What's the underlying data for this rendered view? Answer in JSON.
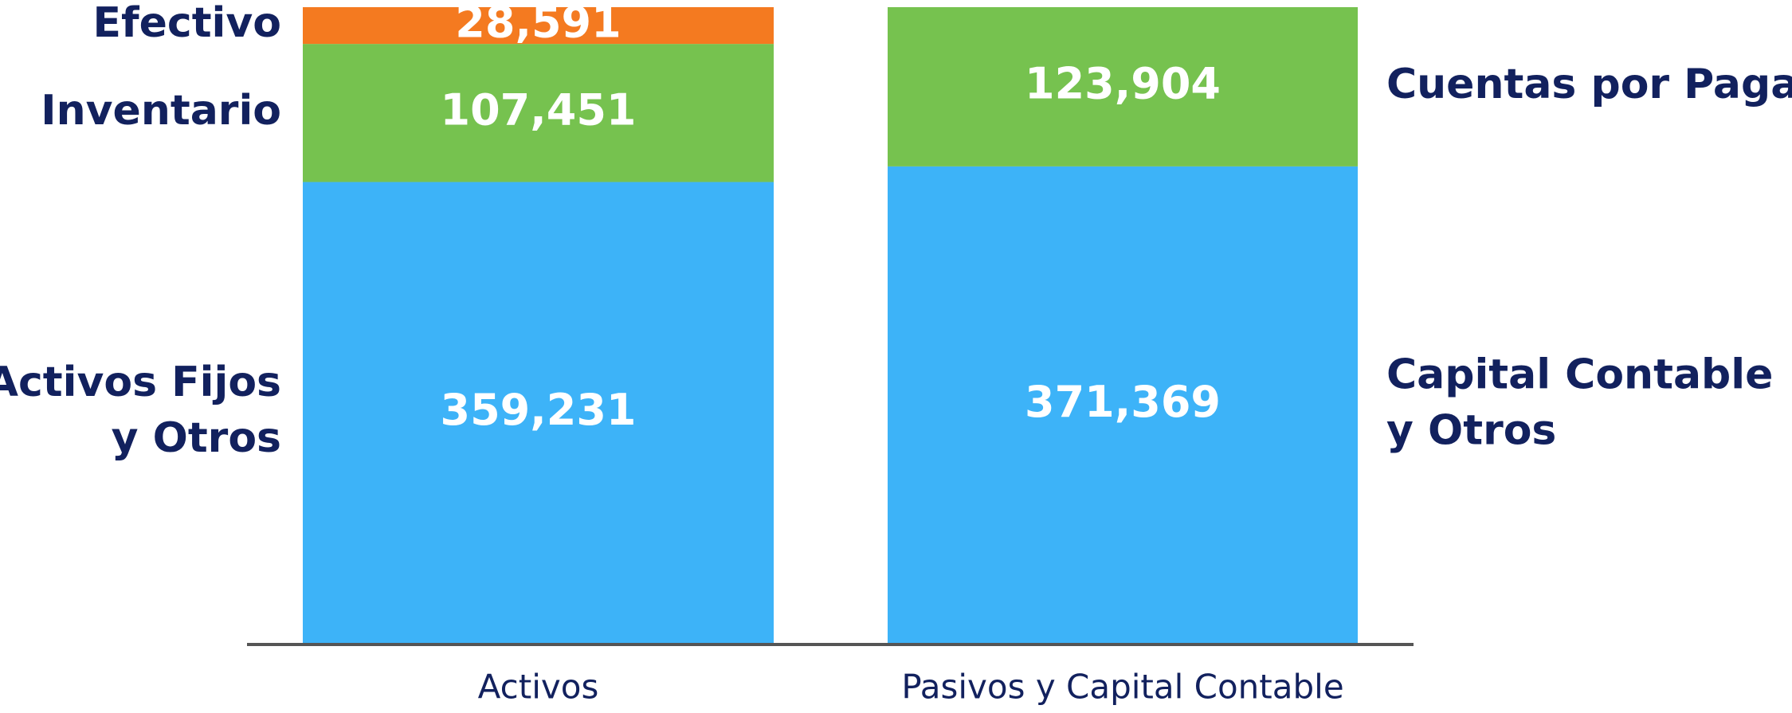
{
  "chart_data": {
    "type": "stacked-bar",
    "bars": [
      {
        "category": "Activos",
        "label_side": "left",
        "segments": [
          {
            "name": [
              "Activos Fijos",
              "y Otros"
            ],
            "value": 359231,
            "value_label": "359,231",
            "color": "#3db3f8"
          },
          {
            "name": [
              "Inventario"
            ],
            "value": 107451,
            "value_label": "107,451",
            "color": "#76c24f"
          },
          {
            "name": [
              "Efectivo"
            ],
            "value": 28591,
            "value_label": "28,591",
            "color": "#f47a20"
          }
        ]
      },
      {
        "category": "Pasivos y Capital Contable",
        "label_side": "right",
        "segments": [
          {
            "name": [
              "Capital Contable",
              "y Otros"
            ],
            "value": 371369,
            "value_label": "371,369",
            "color": "#3db3f8"
          },
          {
            "name": [
              "Cuentas por Pagar"
            ],
            "value": 123904,
            "value_label": "123,904",
            "color": "#76c24f"
          }
        ]
      }
    ]
  }
}
